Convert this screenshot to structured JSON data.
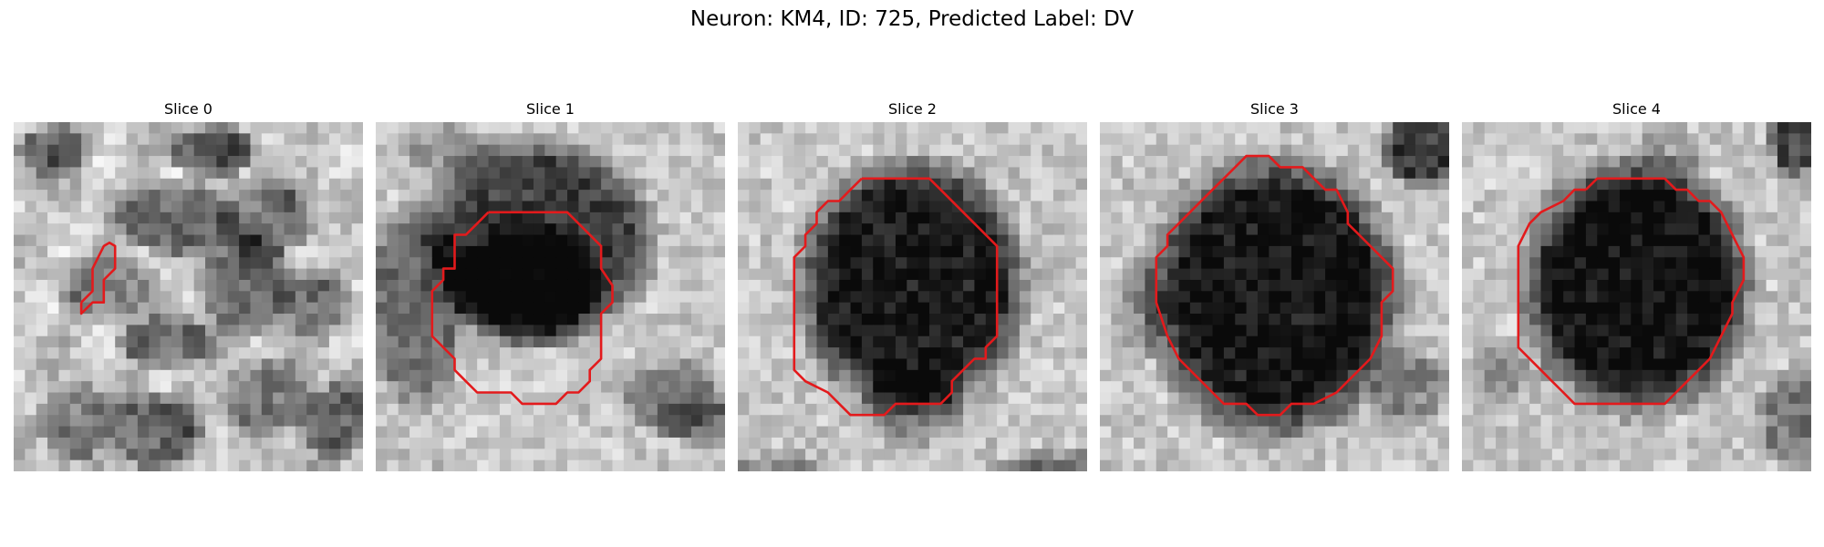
{
  "figure": {
    "title": "Neuron: KM4, ID: 725, Predicted Label: DV"
  },
  "colors": {
    "contour": "#e31a1c",
    "background": "#ffffff"
  },
  "slices": [
    {
      "title": "Slice 0"
    },
    {
      "title": "Slice 1"
    },
    {
      "title": "Slice 2"
    },
    {
      "title": "Slice 3"
    },
    {
      "title": "Slice 4"
    }
  ]
}
